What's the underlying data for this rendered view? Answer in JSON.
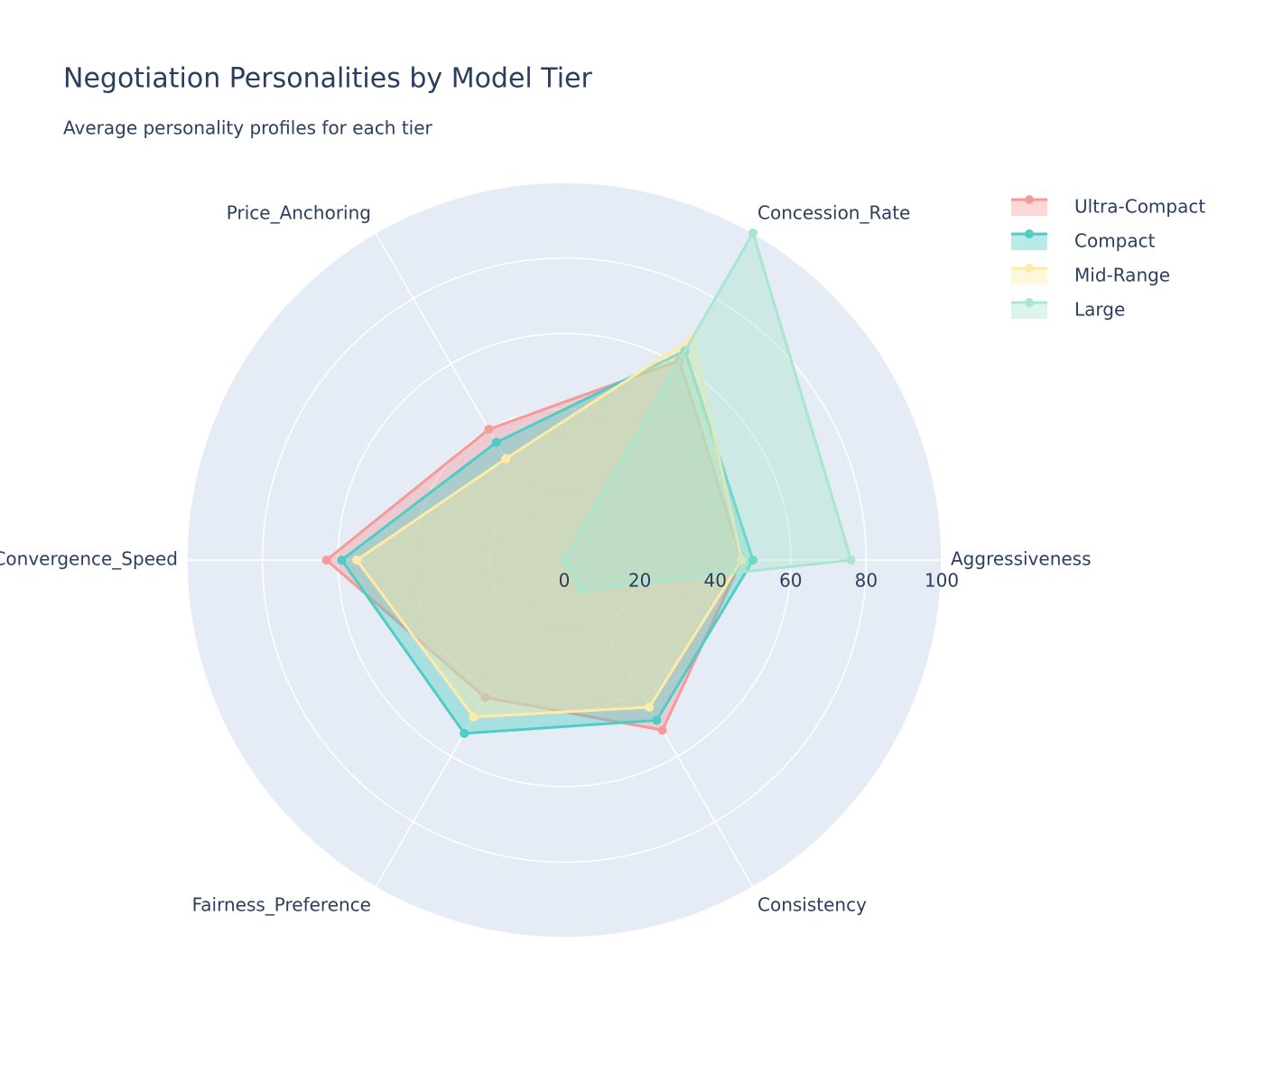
{
  "chart_data": {
    "type": "radar",
    "title": "Negotiation Personalities by Model Tier",
    "subtitle": "Average personality profiles for each tier",
    "categories": [
      "Aggressiveness",
      "Concession_Rate",
      "Price_Anchoring",
      "Convergence_Speed",
      "Fairness_Preference",
      "Consistency"
    ],
    "series": [
      {
        "name": "Ultra-Compact",
        "color": "#f49a9a",
        "values": [
          47,
          61,
          40,
          63,
          42,
          52
        ]
      },
      {
        "name": "Compact",
        "color": "#4ecdc4",
        "values": [
          50,
          64,
          36,
          59,
          53,
          49
        ]
      },
      {
        "name": "Mid-Range",
        "color": "#ffeaa7",
        "values": [
          47,
          68,
          31,
          55,
          48,
          45
        ]
      },
      {
        "name": "Large",
        "color": "#a8e6cf",
        "values": [
          76,
          100,
          0,
          0,
          0,
          9
        ]
      }
    ],
    "rlim": [
      0,
      100
    ],
    "rticks": [
      0,
      20,
      40,
      60,
      80,
      100
    ],
    "grid": true,
    "legend": "top-right"
  }
}
